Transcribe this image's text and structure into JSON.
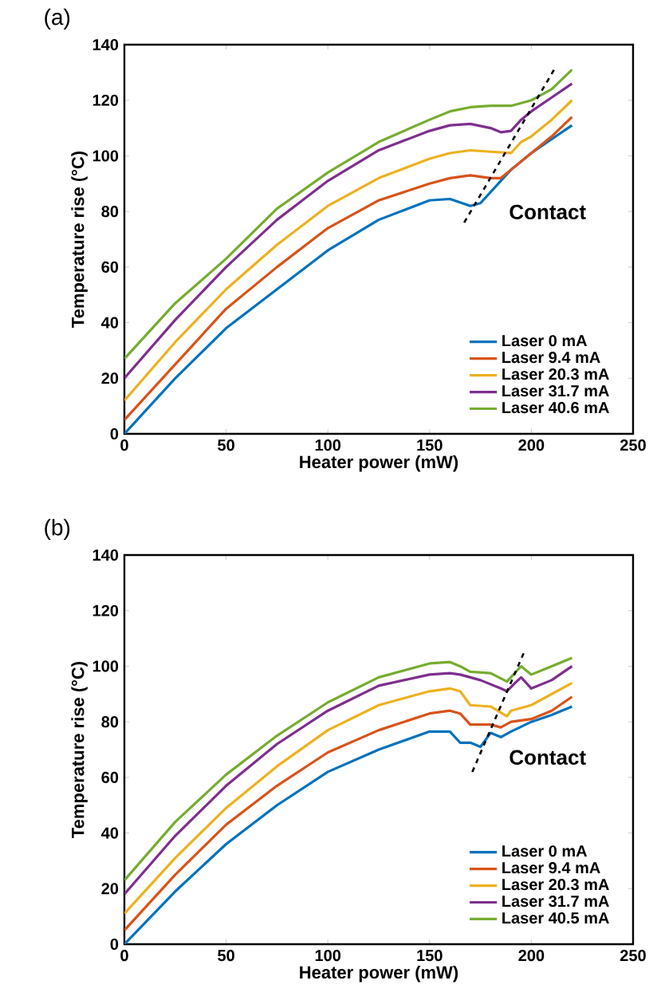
{
  "chart_data": [
    {
      "type": "line",
      "title": "(a)",
      "xlabel": "Heater power (mW)",
      "ylabel": "Temperature rise (°C)",
      "xlim": [
        0,
        250
      ],
      "ylim": [
        0,
        140
      ],
      "xticks": [
        0,
        50,
        100,
        150,
        200,
        250
      ],
      "yticks": [
        0,
        20,
        40,
        60,
        80,
        100,
        120,
        140
      ],
      "grid": false,
      "legend": "bottom right",
      "line_style": "solid",
      "marker": "none",
      "annotations": [
        "Contact"
      ],
      "series": [
        {
          "name": "Laser 0 mA",
          "color": "#0072bd",
          "x": [
            0,
            25,
            50,
            75,
            100,
            125,
            150,
            160,
            170,
            175,
            180,
            185,
            190,
            200,
            210,
            220
          ],
          "values": [
            0,
            20,
            38,
            52,
            66,
            77,
            84,
            84.5,
            82,
            83,
            87,
            91,
            95,
            101,
            106,
            111
          ]
        },
        {
          "name": "Laser 9.4 mA",
          "color": "#d95319",
          "x": [
            0,
            25,
            50,
            75,
            100,
            125,
            150,
            160,
            170,
            180,
            185,
            190,
            200,
            210,
            220
          ],
          "values": [
            5,
            25,
            45,
            60,
            74,
            84,
            90,
            92,
            93,
            92,
            92,
            95,
            101,
            107,
            114
          ]
        },
        {
          "name": "Laser 20.3 mA",
          "color": "#edb120",
          "x": [
            0,
            25,
            50,
            75,
            100,
            125,
            150,
            160,
            170,
            180,
            190,
            195,
            200,
            210,
            220
          ],
          "values": [
            12,
            33,
            52,
            68,
            82,
            92,
            99,
            101,
            102,
            101.5,
            101,
            105,
            107,
            113,
            120
          ]
        },
        {
          "name": "Laser 31.7 mA",
          "color": "#7e2f8e",
          "x": [
            0,
            25,
            50,
            75,
            100,
            125,
            150,
            160,
            170,
            180,
            185,
            190,
            195,
            200,
            210,
            220
          ],
          "values": [
            20,
            41,
            60,
            77,
            91,
            102,
            109,
            111,
            111.5,
            110,
            108.5,
            109,
            113,
            116,
            121,
            126
          ]
        },
        {
          "name": "Laser 40.6 mA",
          "color": "#77ac30",
          "x": [
            0,
            25,
            50,
            75,
            100,
            125,
            150,
            160,
            170,
            180,
            190,
            195,
            200,
            210,
            220
          ],
          "values": [
            27,
            47,
            63,
            81,
            94,
            105,
            113,
            116,
            117.5,
            118,
            118,
            119,
            120,
            124,
            131
          ]
        },
        {
          "type": "line",
          "line_style": "dashed",
          "color": "#000000",
          "x": [
            167,
            212
          ],
          "values": [
            76,
            132
          ]
        }
      ]
    },
    {
      "type": "line",
      "title": "(b)",
      "xlabel": "Heater power (mW)",
      "ylabel": "Temperature rise (°C)",
      "xlim": [
        0,
        250
      ],
      "ylim": [
        0,
        140
      ],
      "xticks": [
        0,
        50,
        100,
        150,
        200,
        250
      ],
      "yticks": [
        0,
        20,
        40,
        60,
        80,
        100,
        120,
        140
      ],
      "grid": false,
      "legend": "bottom right",
      "line_style": "solid",
      "marker": "none",
      "annotations": [
        "Contact"
      ],
      "series": [
        {
          "name": "Laser 0 mA",
          "color": "#0072bd",
          "x": [
            0,
            25,
            50,
            75,
            100,
            125,
            150,
            160,
            165,
            170,
            175,
            180,
            185,
            190,
            200,
            210,
            220
          ],
          "values": [
            0,
            19,
            36,
            50,
            62,
            70,
            76.5,
            76.5,
            72.5,
            72.5,
            71,
            76,
            74.5,
            76.5,
            80,
            82.5,
            85.5
          ]
        },
        {
          "name": "Laser 9.4 mA",
          "color": "#d95319",
          "x": [
            0,
            25,
            50,
            75,
            100,
            125,
            150,
            160,
            165,
            170,
            175,
            180,
            185,
            190,
            200,
            210,
            220
          ],
          "values": [
            5,
            25,
            43,
            57,
            69,
            77,
            83,
            84,
            83,
            79,
            79,
            79,
            78,
            80,
            81,
            84,
            89
          ]
        },
        {
          "name": "Laser 20.3 mA",
          "color": "#edb120",
          "x": [
            0,
            25,
            50,
            75,
            100,
            125,
            150,
            160,
            165,
            170,
            180,
            188,
            190,
            200,
            210,
            220
          ],
          "values": [
            11,
            31,
            49,
            64,
            77,
            86,
            91,
            92,
            91,
            86,
            85.5,
            82,
            84,
            86,
            90,
            94
          ]
        },
        {
          "name": "Laser 31.7 mA",
          "color": "#7e2f8e",
          "x": [
            0,
            25,
            50,
            75,
            100,
            125,
            150,
            160,
            165,
            170,
            175,
            185,
            188,
            192,
            195,
            200,
            210,
            220
          ],
          "values": [
            18,
            39,
            57,
            72,
            84,
            93,
            97,
            97.5,
            97,
            96,
            95,
            92,
            91,
            94,
            96,
            92,
            95,
            100
          ]
        },
        {
          "name": "Laser 40.5 mA",
          "color": "#77ac30",
          "x": [
            0,
            25,
            50,
            75,
            100,
            125,
            150,
            160,
            165,
            170,
            180,
            188,
            195,
            200,
            210,
            220
          ],
          "values": [
            23,
            44,
            61,
            75,
            87,
            96,
            101,
            101.5,
            100,
            98,
            97.5,
            94.5,
            100,
            97,
            100,
            103
          ]
        },
        {
          "type": "line",
          "line_style": "dashed",
          "color": "#000000",
          "x": [
            171,
            197
          ],
          "values": [
            62,
            106
          ]
        }
      ]
    }
  ]
}
